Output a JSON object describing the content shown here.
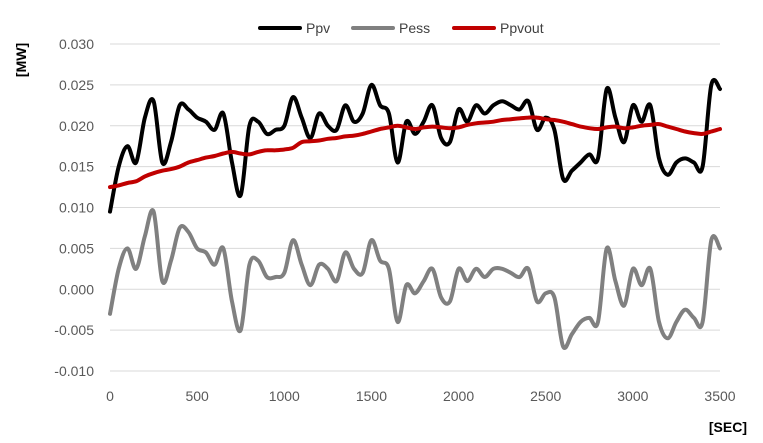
{
  "chart_data": {
    "type": "line",
    "title": "",
    "xlabel": "[SEC]",
    "ylabel": "[MW]",
    "xlim": [
      0,
      3500
    ],
    "ylim": [
      -0.01,
      0.03
    ],
    "x_ticks": [
      "0",
      "500",
      "1000",
      "1500",
      "2000",
      "2500",
      "3000",
      "3500"
    ],
    "y_ticks": [
      "0.030",
      "0.025",
      "0.020",
      "0.015",
      "0.010",
      "0.005",
      "0.000",
      "-0.005",
      "-0.010"
    ],
    "grid": "horizontal",
    "legend_position": "top",
    "x": [
      0,
      50,
      100,
      150,
      200,
      250,
      300,
      350,
      400,
      450,
      500,
      550,
      600,
      650,
      700,
      750,
      800,
      850,
      900,
      950,
      1000,
      1050,
      1100,
      1150,
      1200,
      1250,
      1300,
      1350,
      1400,
      1450,
      1500,
      1550,
      1600,
      1650,
      1700,
      1750,
      1800,
      1850,
      1900,
      1950,
      2000,
      2050,
      2100,
      2150,
      2200,
      2250,
      2300,
      2350,
      2400,
      2450,
      2500,
      2550,
      2600,
      2650,
      2700,
      2750,
      2800,
      2850,
      2900,
      2950,
      3000,
      3050,
      3100,
      3150,
      3200,
      3250,
      3300,
      3350,
      3400,
      3450,
      3500
    ],
    "series": [
      {
        "name": "Ppv",
        "color": "#000000",
        "values": [
          0.0095,
          0.015,
          0.0175,
          0.0155,
          0.021,
          0.023,
          0.0155,
          0.018,
          0.0225,
          0.022,
          0.021,
          0.0205,
          0.0195,
          0.0215,
          0.0155,
          0.0115,
          0.02,
          0.0205,
          0.019,
          0.0195,
          0.02,
          0.0235,
          0.021,
          0.0185,
          0.0215,
          0.02,
          0.0195,
          0.0225,
          0.0205,
          0.0215,
          0.025,
          0.0225,
          0.0215,
          0.0155,
          0.0205,
          0.019,
          0.0205,
          0.0225,
          0.0185,
          0.018,
          0.022,
          0.0205,
          0.0225,
          0.0215,
          0.0225,
          0.023,
          0.0225,
          0.022,
          0.023,
          0.0195,
          0.021,
          0.0195,
          0.0135,
          0.0145,
          0.0155,
          0.0165,
          0.016,
          0.0245,
          0.021,
          0.018,
          0.0225,
          0.0205,
          0.0225,
          0.016,
          0.014,
          0.0155,
          0.016,
          0.0155,
          0.015,
          0.025,
          0.0245
        ]
      },
      {
        "name": "Pess",
        "color": "#808080",
        "values": [
          -0.003,
          0.0025,
          0.005,
          0.0025,
          0.0065,
          0.0095,
          0.001,
          0.0035,
          0.0075,
          0.007,
          0.005,
          0.0045,
          0.003,
          0.005,
          -0.0015,
          -0.005,
          0.003,
          0.0035,
          0.0015,
          0.0015,
          0.002,
          0.006,
          0.003,
          0.0005,
          0.003,
          0.0025,
          0.001,
          0.0045,
          0.0025,
          0.002,
          0.006,
          0.0035,
          0.0025,
          -0.004,
          0.0005,
          -0.0005,
          0.001,
          0.0025,
          -0.001,
          -0.0015,
          0.0025,
          0.001,
          0.0025,
          0.0015,
          0.0025,
          0.0025,
          0.002,
          0.0015,
          0.0025,
          -0.0015,
          -0.0005,
          -0.001,
          -0.007,
          -0.0055,
          -0.004,
          -0.0035,
          -0.004,
          0.005,
          0.001,
          -0.002,
          0.0025,
          0.0005,
          0.0025,
          -0.004,
          -0.006,
          -0.004,
          -0.0025,
          -0.0035,
          -0.004,
          0.006,
          0.005
        ]
      },
      {
        "name": "Ppvout",
        "color": "#c00000",
        "values": [
          0.0125,
          0.0127,
          0.013,
          0.0132,
          0.0138,
          0.0142,
          0.0145,
          0.0147,
          0.015,
          0.0155,
          0.0158,
          0.0161,
          0.0163,
          0.0166,
          0.0168,
          0.0166,
          0.0165,
          0.0168,
          0.017,
          0.017,
          0.0171,
          0.0173,
          0.018,
          0.0181,
          0.0182,
          0.0184,
          0.0185,
          0.0187,
          0.0188,
          0.019,
          0.0193,
          0.0196,
          0.0198,
          0.02,
          0.0198,
          0.0196,
          0.0198,
          0.0199,
          0.0198,
          0.0197,
          0.0198,
          0.0201,
          0.0203,
          0.0204,
          0.0205,
          0.0207,
          0.0208,
          0.0209,
          0.021,
          0.021,
          0.0208,
          0.0207,
          0.0205,
          0.0202,
          0.0199,
          0.0197,
          0.0196,
          0.0198,
          0.0199,
          0.0197,
          0.0198,
          0.02,
          0.0201,
          0.0202,
          0.0199,
          0.0196,
          0.0193,
          0.0191,
          0.019,
          0.0193,
          0.0196
        ]
      }
    ]
  }
}
